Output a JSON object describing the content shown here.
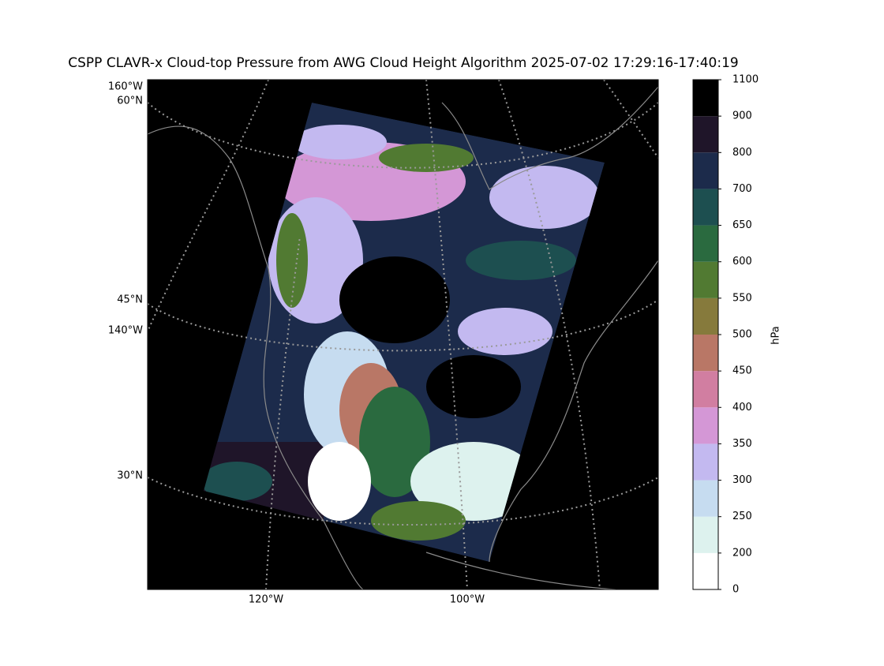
{
  "title": "CSPP CLAVR-x Cloud-top Pressure from AWG Cloud Height Algorithm 2025-07-02 17:29:16-17:40:19",
  "map": {
    "labels": {
      "lon_160w": "160°W",
      "lat_60n": "60°N",
      "lat_45n": "45°N",
      "lon_140w": "140°W",
      "lat_30n": "30°N",
      "lon_120w": "120°W",
      "lon_100w": "100°W"
    }
  },
  "colorbar": {
    "label": "hPa",
    "boundaries": [
      0,
      200,
      250,
      300,
      350,
      400,
      450,
      500,
      550,
      600,
      650,
      700,
      800,
      900,
      1100
    ],
    "colors": [
      "#ffffff",
      "#ddf2ee",
      "#c6dcf0",
      "#c3b9f0",
      "#d497d6",
      "#d17ea1",
      "#b97766",
      "#867a3c",
      "#517a32",
      "#2a6a3f",
      "#1d4f50",
      "#1c2b4b",
      "#1f1529",
      "#000000"
    ]
  }
}
